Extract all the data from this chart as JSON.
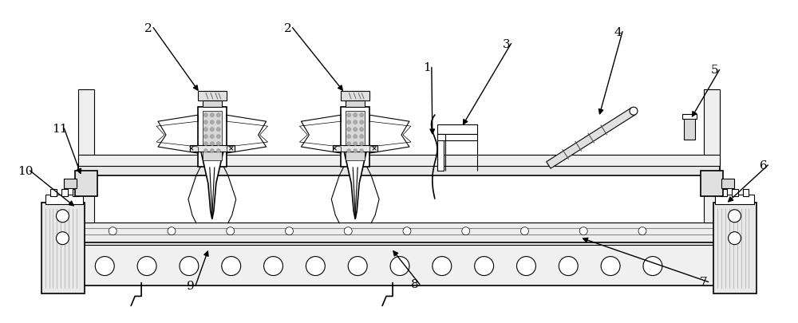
{
  "bg_color": "#ffffff",
  "lc": "#000000",
  "gray1": "#e8e8e8",
  "gray2": "#d0d0d0",
  "gray3": "#b0b0b0",
  "dot_fill": "#cccccc",
  "figsize": [
    10.0,
    4.06
  ],
  "dpi": 100,
  "xlim": [
    0,
    1000
  ],
  "ylim": [
    0,
    406
  ]
}
